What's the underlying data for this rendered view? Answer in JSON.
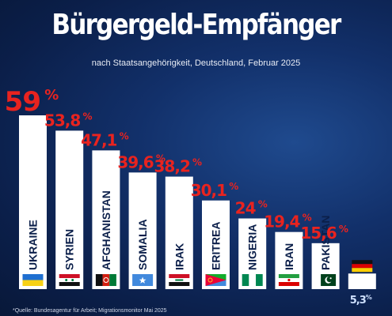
{
  "title": "Bürgergeld-Empfänger",
  "subtitle": "nach Staatsangehörigkeit, Deutschland, Februar 2025",
  "source": "*Quelle: Bundesagentur für Arbeit; Migrationsmonitor Mai 2025",
  "colors": {
    "bar": "#ffffff",
    "value_label": "#e8231f",
    "last_value_label": "#cfe1ff",
    "country_label": "#0b1f4a"
  },
  "chart_data": {
    "type": "bar",
    "title": "Bürgergeld-Empfänger",
    "subtitle": "nach Staatsangehörigkeit, Deutschland, Februar 2025",
    "xlabel": "",
    "ylabel": "",
    "ylim": [
      0,
      60
    ],
    "grid": false,
    "legend": "none",
    "unit": "%",
    "categories": [
      "UKRAINE",
      "SYRIEN",
      "AFGHANISTAN",
      "SOMALIA",
      "IRAK",
      "ERITREA",
      "NIGERIA",
      "IRAN",
      "PAKISTAN",
      "DEUTSCHLAND"
    ],
    "category_labels": [
      "UKRAINE",
      "SYRIEN",
      "AFGHANISTAN",
      "SOMALIA",
      "IRAK",
      "ERITREA",
      "NIGERIA",
      "IRAN",
      "PAKISTAN",
      ""
    ],
    "values": [
      59,
      53.8,
      47.1,
      39.6,
      38.2,
      30.1,
      24,
      19.4,
      15.6,
      5.3
    ],
    "value_labels": [
      "59",
      "53,8",
      "47,1",
      "39,6",
      "38,2",
      "30,1",
      "24",
      "19,4",
      "15,6",
      "5,3"
    ],
    "flags": [
      "ukraine-flag",
      "syria-flag",
      "afghanistan-flag",
      "somalia-flag",
      "iraq-flag",
      "eritrea-flag",
      "nigeria-flag",
      "iran-flag",
      "pakistan-flag",
      "germany-flag"
    ]
  }
}
